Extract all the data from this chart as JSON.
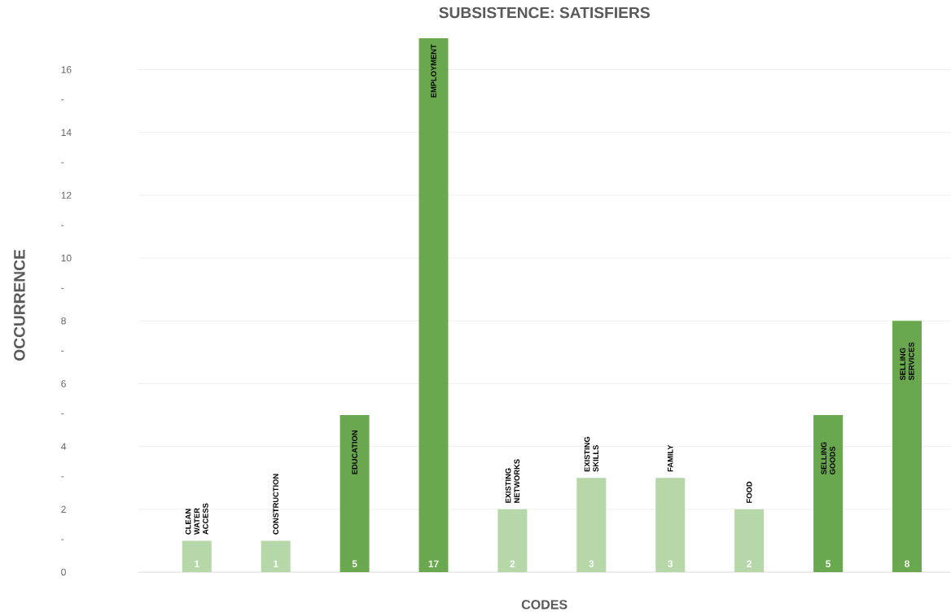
{
  "chart_data": {
    "type": "bar",
    "title": "SUBSISTENCE: SATISFIERS",
    "xlabel": "CODES",
    "ylabel": "OCCURRENCE",
    "categories": [
      "CLEAN WATER ACCESS",
      "CONSTRUCTION",
      "EDUCATION",
      "EMPLOYMENT",
      "EXISTING NETWORKS",
      "EXISTING SKILLS",
      "FAMILY",
      "FOOD",
      "SELLING GOODS",
      "SELLING SERVICES"
    ],
    "values": [
      1,
      1,
      5,
      17,
      2,
      3,
      3,
      2,
      5,
      8
    ],
    "colors": [
      "#b6d7a8",
      "#b6d7a8",
      "#6aa84f",
      "#6aa84f",
      "#b6d7a8",
      "#b6d7a8",
      "#b6d7a8",
      "#b6d7a8",
      "#6aa84f",
      "#6aa84f"
    ],
    "ylim": [
      0,
      17
    ],
    "yticks": [
      0,
      {
        "value": 1,
        "label": "-"
      },
      2,
      {
        "value": 3,
        "label": "-"
      },
      4,
      {
        "value": 5,
        "label": "-"
      },
      6,
      {
        "value": 7,
        "label": "-"
      },
      8,
      {
        "value": 9,
        "label": "-"
      },
      10,
      {
        "value": 11,
        "label": "-"
      },
      12,
      {
        "value": 13,
        "label": "-"
      },
      14,
      {
        "value": 15,
        "label": "-"
      },
      16
    ],
    "grid": "y",
    "data_labels": true
  }
}
